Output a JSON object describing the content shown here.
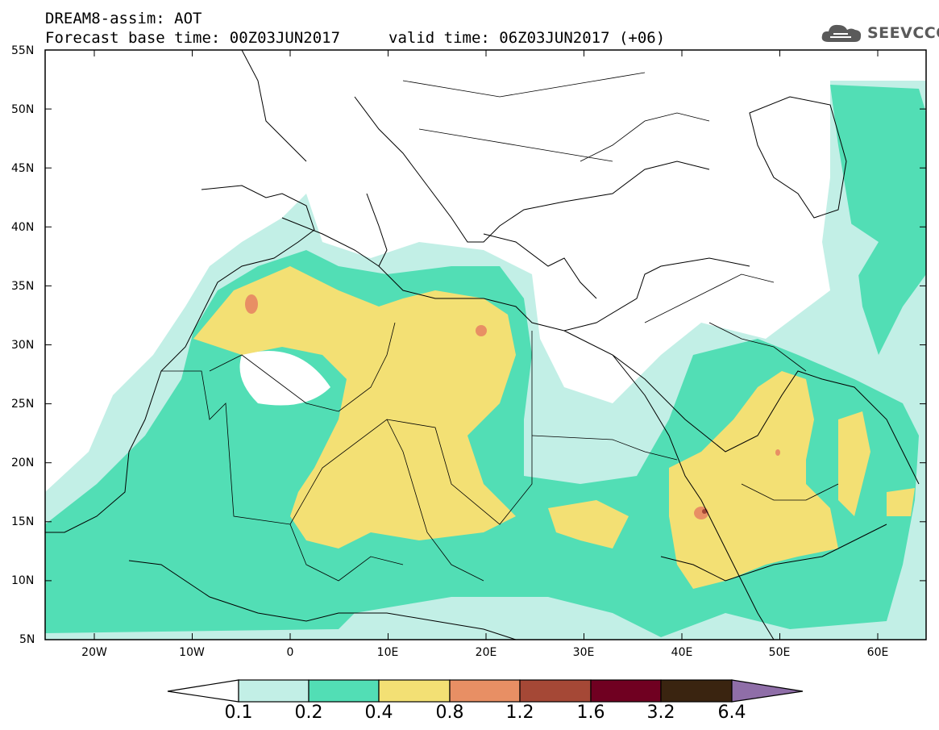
{
  "title": {
    "line1": "DREAM8-assim: AOT",
    "line2": "Forecast base time: 00Z03JUN2017",
    "line3": "valid time: 06Z03JUN2017 (+06)"
  },
  "brand": {
    "name": "SEEVCCC",
    "icon": "cloud-logo-icon"
  },
  "map": {
    "lat_labels": [
      "55N",
      "50N",
      "45N",
      "40N",
      "35N",
      "30N",
      "25N",
      "20N",
      "15N",
      "10N",
      "5N"
    ],
    "lon_labels": [
      "20W",
      "10W",
      "0",
      "10E",
      "20E",
      "30E",
      "40E",
      "50E",
      "60E"
    ]
  },
  "legend": {
    "colors": [
      "#ffffff",
      "#c2efe6",
      "#52deb5",
      "#f3e074",
      "#e88f64",
      "#a54836",
      "#700021",
      "#3a2410",
      "#8f6ea8"
    ],
    "labels": [
      "0.1",
      "0.2",
      "0.4",
      "0.8",
      "1.2",
      "1.6",
      "3.2",
      "6.4"
    ]
  }
}
